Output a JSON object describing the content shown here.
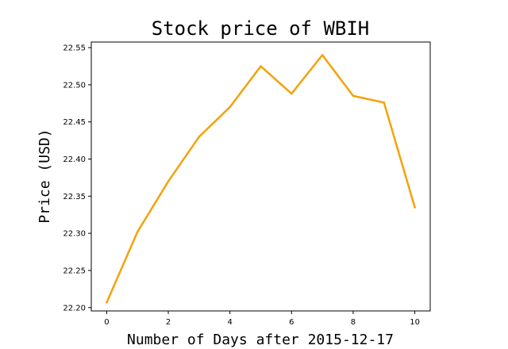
{
  "chart_data": {
    "type": "line",
    "title": "Stock price of WBIH",
    "xlabel": "Number of Days after 2015-12-17",
    "ylabel": "Price (USD)",
    "x": [
      0,
      1,
      2,
      3,
      4,
      5,
      6,
      7,
      8,
      9,
      10
    ],
    "series": [
      {
        "values": [
          22.207,
          22.302,
          22.37,
          22.43,
          22.47,
          22.525,
          22.488,
          22.54,
          22.485,
          22.476,
          22.335
        ],
        "color": "#f5a10a"
      }
    ],
    "xlim": [
      -0.5,
      10.5
    ],
    "ylim": [
      22.1955,
      22.5575
    ],
    "xticks": [
      0,
      2,
      4,
      6,
      8,
      10
    ],
    "xtick_labels": [
      "0",
      "2",
      "4",
      "6",
      "8",
      "10"
    ],
    "yticks": [
      22.2,
      22.25,
      22.3,
      22.35,
      22.4,
      22.45,
      22.5,
      22.55
    ],
    "ytick_labels": [
      "22.20",
      "22.25",
      "22.30",
      "22.35",
      "22.40",
      "22.45",
      "22.50",
      "22.55"
    ],
    "grid": false,
    "legend": "none"
  }
}
